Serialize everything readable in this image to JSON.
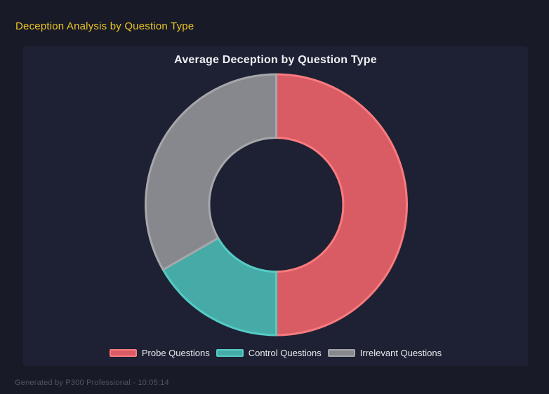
{
  "page": {
    "title": "Deception Analysis by Question Type",
    "footer": "Generated by P300 Professional - 10:05:14"
  },
  "theme": {
    "page_bg": "#181b27",
    "panel_bg": "#1e2133",
    "page_title_color": "#ecc427",
    "chart_title_color": "#eef0f3",
    "legend_text_color": "#e9ebee",
    "footer_color": "#4e5561"
  },
  "chart_data": {
    "type": "pie",
    "variant": "donut",
    "title": "Average Deception by Question Type",
    "categories": [
      "Probe Questions",
      "Control Questions",
      "Irrelevant Questions"
    ],
    "values": [
      50,
      16.7,
      33.3
    ],
    "value_unit": "percent of circle, estimated from arc angles (no numeric labels shown)",
    "legend_position": "bottom",
    "cutout_pct": 51,
    "segment_colors": [
      {
        "fill": "#d95b63",
        "border": "#f97b7e"
      },
      {
        "fill": "#46aba6",
        "border": "#55cbc4"
      },
      {
        "fill": "#87888d",
        "border": "#a6a7ab"
      }
    ]
  }
}
